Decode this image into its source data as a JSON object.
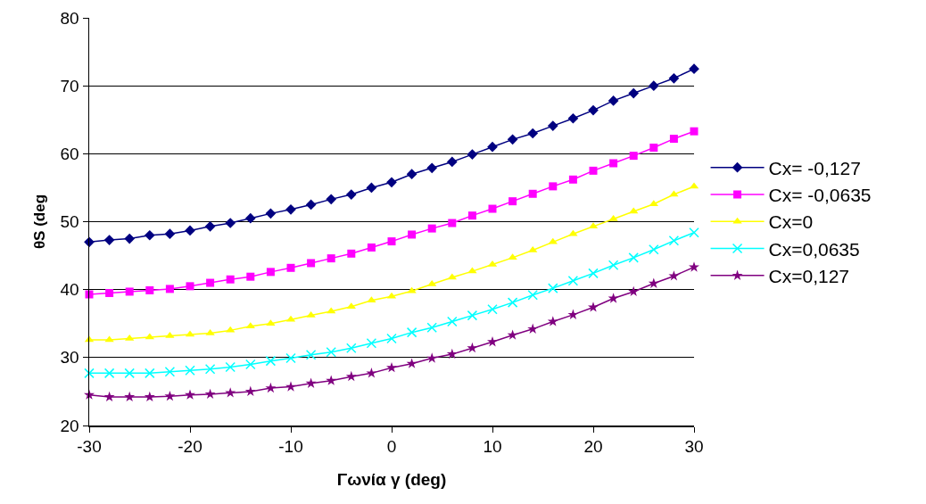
{
  "chart_data": {
    "type": "line",
    "xlabel": "Γωνία γ (deg)",
    "ylabel": "θS (deg",
    "x": [
      -30,
      -28,
      -26,
      -24,
      -22,
      -20,
      -18,
      -16,
      -14,
      -12,
      -10,
      -8,
      -6,
      -4,
      -2,
      0,
      2,
      4,
      6,
      8,
      10,
      12,
      14,
      16,
      18,
      20,
      22,
      24,
      26,
      28,
      30
    ],
    "xlim": [
      -30,
      30
    ],
    "xticks": [
      -30,
      -20,
      -10,
      0,
      10,
      20,
      30
    ],
    "ylim": [
      20,
      80
    ],
    "yticks": [
      20,
      30,
      40,
      50,
      60,
      70,
      80
    ],
    "grid": "y",
    "legend": "right",
    "line_style": "solid",
    "series": [
      {
        "name": "Cx= -0,127",
        "color": "#000080",
        "marker": "diamond",
        "values": [
          47,
          47.3,
          47.5,
          48,
          48.2,
          48.7,
          49.3,
          49.8,
          50.5,
          51.2,
          51.8,
          52.5,
          53.3,
          54,
          55,
          55.8,
          57,
          57.9,
          58.8,
          59.9,
          61,
          62.1,
          63,
          64.1,
          65.2,
          66.4,
          67.8,
          68.9,
          70,
          71.1,
          72.5
        ]
      },
      {
        "name": "Cx= -0,0635",
        "color": "#ff00ff",
        "marker": "square",
        "values": [
          39.3,
          39.5,
          39.7,
          39.9,
          40.1,
          40.5,
          41,
          41.5,
          41.9,
          42.6,
          43.2,
          43.9,
          44.6,
          45.3,
          46.2,
          47.1,
          48.1,
          49,
          49.8,
          50.9,
          51.9,
          53,
          54.1,
          55.2,
          56.2,
          57.5,
          58.6,
          59.7,
          60.9,
          62.2,
          63.3
        ]
      },
      {
        "name": "Cx=0",
        "color": "#ffff00",
        "marker": "triangle",
        "values": [
          32.6,
          32.6,
          32.8,
          33,
          33.2,
          33.4,
          33.6,
          34,
          34.6,
          35,
          35.6,
          36.2,
          36.8,
          37.5,
          38.4,
          39,
          39.8,
          40.8,
          41.8,
          42.7,
          43.7,
          44.7,
          45.8,
          47,
          48.2,
          49.3,
          50.4,
          51.5,
          52.6,
          54,
          55.2
        ]
      },
      {
        "name": "Cx=0,0635",
        "color": "#00ffff",
        "marker": "cross",
        "values": [
          27.7,
          27.7,
          27.7,
          27.7,
          27.9,
          28.1,
          28.3,
          28.6,
          29,
          29.5,
          29.9,
          30.4,
          30.8,
          31.4,
          32.1,
          32.8,
          33.7,
          34.4,
          35.3,
          36.2,
          37.1,
          38.1,
          39.2,
          40.2,
          41.3,
          42.4,
          43.6,
          44.7,
          45.9,
          47.2,
          48.4
        ]
      },
      {
        "name": "Cx=0,127",
        "color": "#800080",
        "marker": "star",
        "values": [
          24.5,
          24.2,
          24.2,
          24.2,
          24.3,
          24.5,
          24.6,
          24.8,
          25,
          25.5,
          25.7,
          26.2,
          26.6,
          27.2,
          27.7,
          28.5,
          29.1,
          29.9,
          30.5,
          31.4,
          32.3,
          33.3,
          34.2,
          35.3,
          36.3,
          37.4,
          38.7,
          39.7,
          40.9,
          42,
          43.3
        ]
      }
    ]
  }
}
